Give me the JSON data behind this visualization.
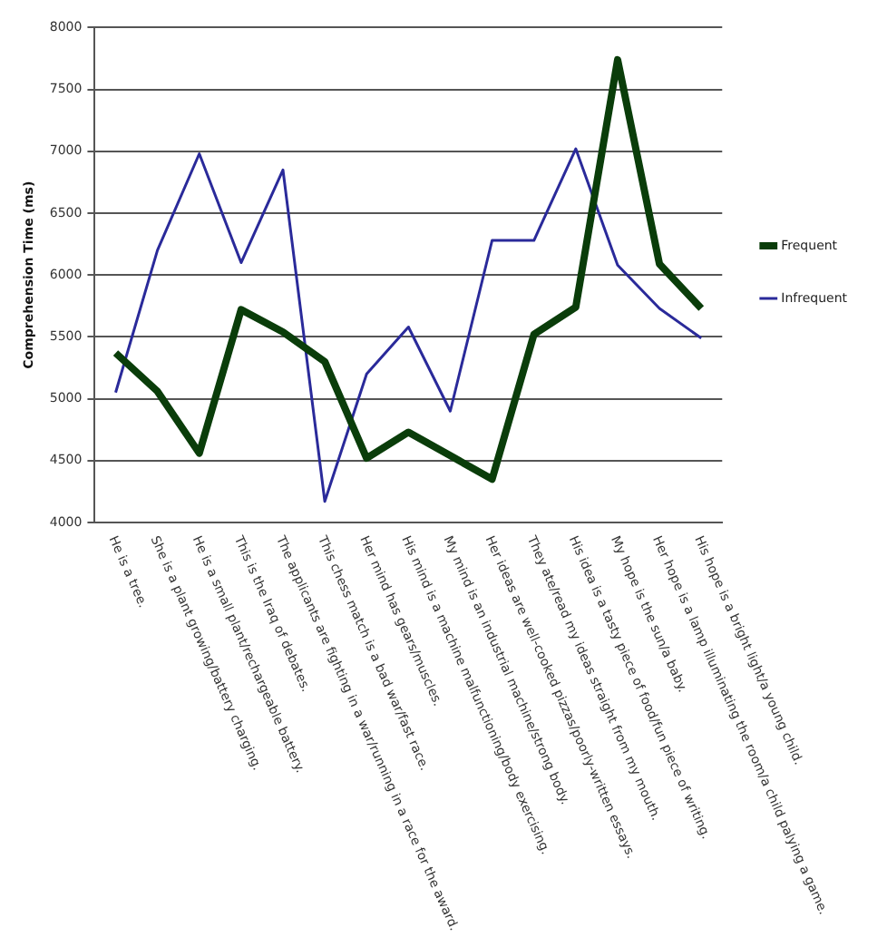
{
  "chart_data": {
    "type": "line",
    "ylabel": "Comprehension Time (ms)",
    "categories": [
      "He is a tree.",
      "She is a plant growing/battery charging.",
      "He is a small plant/rechargeable battery.",
      "This is the Iraq of debates.",
      "The applicants are fighting in a war/running in a race for the award.",
      "This chess match is a bad war/fast race.",
      "Her mind has gears/muscles.",
      "His mind is a machine malfunctioning/body exercising.",
      "My mind is an industrial machine/strong body.",
      "Her ideas are well-cooked pizzas/poorly-written essays.",
      "They ate/read my ideas straight from my mouth.",
      "His idea is a tasty piece of food/fun piece of writing.",
      "My hope is the sun/a baby.",
      "Her hope is a lamp illuminating the room/a child palying a game.",
      "His hope is a bright light/a young child."
    ],
    "series": [
      {
        "name": "Frequent",
        "color": "#0a3d0a",
        "values": [
          5370,
          5060,
          4560,
          5720,
          5540,
          5300,
          4520,
          4730,
          4540,
          4350,
          5520,
          5740,
          7740,
          6090,
          5730
        ]
      },
      {
        "name": "Infrequent",
        "color": "#2a2a9a",
        "values": [
          5050,
          6200,
          6980,
          6100,
          6850,
          4170,
          5200,
          5580,
          4900,
          6280,
          6280,
          7020,
          6080,
          5730,
          5490
        ]
      }
    ],
    "ylim": [
      4000,
      8000
    ],
    "yticks": [
      4000,
      4500,
      5000,
      5500,
      6000,
      6500,
      7000,
      7500,
      8000
    ],
    "grid": "y",
    "legend": "right",
    "marker": "none",
    "line_style": "solid"
  }
}
